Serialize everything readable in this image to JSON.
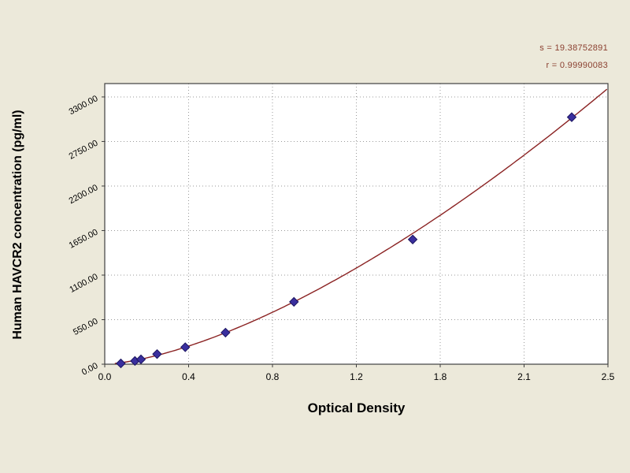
{
  "stats": {
    "s_line": "s = 19.38752891",
    "r_line": "r = 0.99990083"
  },
  "axes": {
    "x_title": "Optical Density",
    "y_title": "Human HAVCR2 concentration (pg/ml)"
  },
  "chart_data": {
    "type": "scatter",
    "title": "",
    "xlabel": "Optical Density",
    "ylabel": "Human HAVCR2 concentration (pg/ml)",
    "legend": "none",
    "grid": true,
    "xlim": [
      0,
      2.5
    ],
    "ylim": [
      0,
      3465
    ],
    "x_ticks": [
      "0.0",
      "0.4",
      "0.8",
      "1.2",
      "1.8",
      "2.1",
      "2.5"
    ],
    "y_ticks": [
      "0.00",
      "550.00",
      "1100.00",
      "1650.00",
      "2200.00",
      "2750.00",
      "3300.00"
    ],
    "points": [
      [
        0.08,
        10
      ],
      [
        0.15,
        40
      ],
      [
        0.18,
        60
      ],
      [
        0.26,
        125
      ],
      [
        0.4,
        210
      ],
      [
        0.6,
        390
      ],
      [
        0.94,
        770
      ],
      [
        1.53,
        1540
      ],
      [
        2.32,
        3050
      ]
    ],
    "fit_curve": {
      "model": "power",
      "a": 846,
      "b": 1.52,
      "x_start": 0.05,
      "x_end": 2.5
    },
    "colors": {
      "background": "#ece9da",
      "plot_bg": "#ffffff",
      "grid": "#9a9a9a",
      "frame": "#404040",
      "curve": "#8b2323",
      "marker": "#3a2f9e",
      "marker_edge": "#1c1560",
      "tick_text": "#000000",
      "stats_text": "#8b4030"
    }
  }
}
